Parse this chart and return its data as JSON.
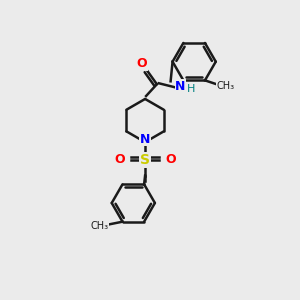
{
  "background_color": "#ebebeb",
  "line_color": "#1a1a1a",
  "bond_width": 1.8,
  "figsize": [
    3.0,
    3.0
  ],
  "dpi": 100,
  "atom_colors": {
    "O": "#ff0000",
    "N": "#0000ff",
    "S": "#cccc00",
    "H": "#008080",
    "C": "#1a1a1a"
  },
  "ring_r": 22,
  "pip_r": 22
}
